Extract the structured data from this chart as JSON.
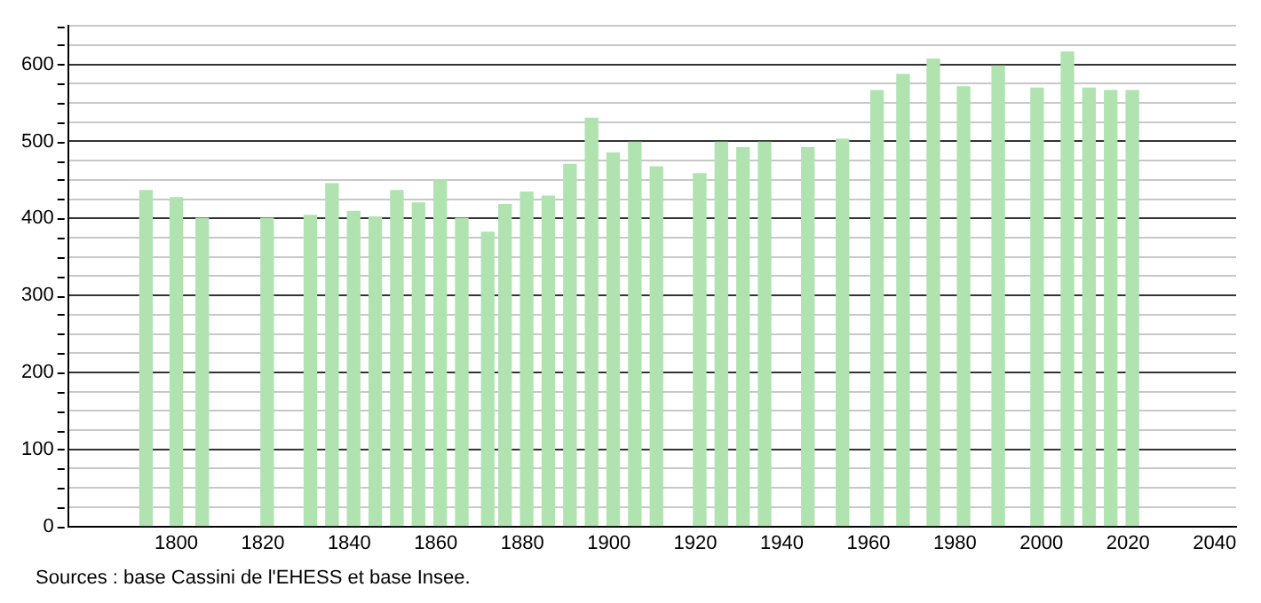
{
  "chart_data": {
    "type": "bar",
    "color": "#b0e3b0",
    "x": [
      1793,
      1800,
      1806,
      1821,
      1831,
      1836,
      1841,
      1846,
      1851,
      1856,
      1861,
      1866,
      1872,
      1876,
      1881,
      1886,
      1891,
      1896,
      1901,
      1906,
      1911,
      1921,
      1926,
      1931,
      1936,
      1946,
      1954,
      1962,
      1968,
      1975,
      1982,
      1990,
      1999,
      2006,
      2011,
      2016,
      2021
    ],
    "values": [
      436,
      427,
      400,
      400,
      404,
      445,
      409,
      402,
      436,
      420,
      449,
      400,
      382,
      418,
      434,
      429,
      470,
      530,
      485,
      499,
      467,
      458,
      499,
      492,
      499,
      492,
      503,
      566,
      587,
      607,
      571,
      598,
      569,
      616,
      569,
      566,
      566
    ],
    "xlim": [
      1775,
      2045
    ],
    "xticks": [
      1800,
      1820,
      1840,
      1860,
      1880,
      1900,
      1920,
      1940,
      1960,
      1980,
      2000,
      2020,
      2040
    ],
    "ylim": [
      0,
      650
    ],
    "yticks": [
      0,
      {
        "value": 25,
        "label": null
      },
      {
        "value": 50,
        "label": null
      },
      {
        "value": 75,
        "label": null
      },
      100,
      {
        "value": 125,
        "label": null
      },
      {
        "value": 150,
        "label": null
      },
      {
        "value": 175,
        "label": null
      },
      200,
      {
        "value": 225,
        "label": null
      },
      {
        "value": 250,
        "label": null
      },
      {
        "value": 275,
        "label": null
      },
      300,
      {
        "value": 325,
        "label": null
      },
      {
        "value": 350,
        "label": null
      },
      {
        "value": 375,
        "label": null
      },
      400,
      {
        "value": 425,
        "label": null
      },
      {
        "value": 450,
        "label": null
      },
      {
        "value": 475,
        "label": null
      },
      500,
      {
        "value": 525,
        "label": null
      },
      {
        "value": 550,
        "label": null
      },
      {
        "value": 575,
        "label": null
      },
      600,
      {
        "value": 625,
        "label": null
      },
      {
        "value": 650,
        "label": null
      }
    ],
    "grid": "y",
    "annotations": [
      "Sources : base Cassini de l'EHESS et base Insee."
    ]
  }
}
